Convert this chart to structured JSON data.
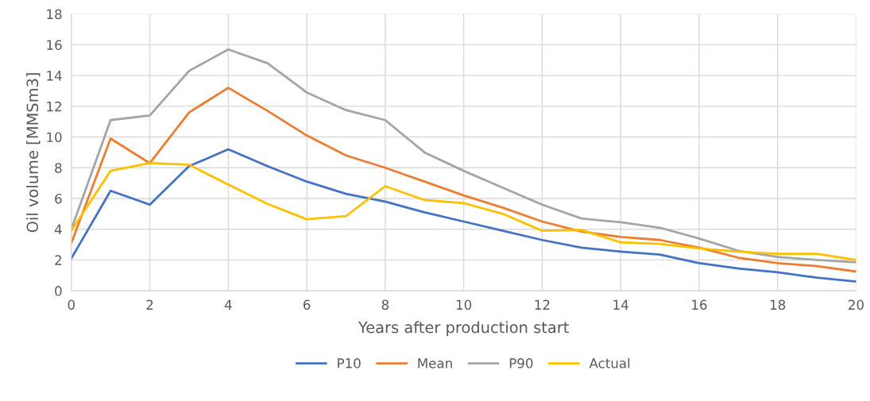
{
  "chart_data": {
    "type": "line",
    "xlabel": "Years after production start",
    "ylabel": "Oil volume [MMSm3]",
    "x": [
      0,
      1,
      2,
      3,
      4,
      5,
      6,
      7,
      8,
      9,
      10,
      11,
      12,
      13,
      14,
      15,
      16,
      17,
      18,
      19,
      20
    ],
    "xlim": [
      0,
      20
    ],
    "xticks": [
      0,
      2,
      4,
      6,
      8,
      10,
      12,
      14,
      16,
      18,
      20
    ],
    "ylim": [
      0,
      18
    ],
    "yticks": [
      0,
      2,
      4,
      6,
      8,
      10,
      12,
      14,
      16,
      18
    ],
    "grid": true,
    "legend": "bottom",
    "marker": "none",
    "line_style": "solid",
    "series": [
      {
        "name": "P10",
        "color": "#4472c4",
        "values": [
          2.1,
          6.5,
          5.6,
          8.1,
          9.2,
          8.1,
          7.1,
          6.3,
          5.8,
          5.1,
          4.5,
          3.9,
          3.3,
          2.8,
          2.55,
          2.35,
          1.8,
          1.45,
          1.2,
          0.85,
          0.6
        ]
      },
      {
        "name": "Mean",
        "color": "#ed7d31",
        "values": [
          3.1,
          9.9,
          8.3,
          11.6,
          13.2,
          11.7,
          10.1,
          8.8,
          8.0,
          7.1,
          6.2,
          5.4,
          4.5,
          3.85,
          3.5,
          3.3,
          2.8,
          2.15,
          1.8,
          1.6,
          1.25
        ]
      },
      {
        "name": "P90",
        "color": "#a5a5a5",
        "values": [
          4.0,
          11.1,
          11.4,
          14.3,
          15.7,
          14.8,
          12.9,
          11.75,
          11.1,
          9.0,
          7.8,
          6.7,
          5.6,
          4.7,
          4.45,
          4.1,
          3.4,
          2.6,
          2.2,
          2.0,
          1.85
        ]
      },
      {
        "name": "Actual",
        "color": "#ffc000",
        "values": [
          3.9,
          7.8,
          8.3,
          8.2,
          6.9,
          5.65,
          4.65,
          4.85,
          6.8,
          5.9,
          5.7,
          5.0,
          3.9,
          3.95,
          3.15,
          3.05,
          2.75,
          2.55,
          2.4,
          2.4,
          2.0
        ]
      }
    ]
  }
}
